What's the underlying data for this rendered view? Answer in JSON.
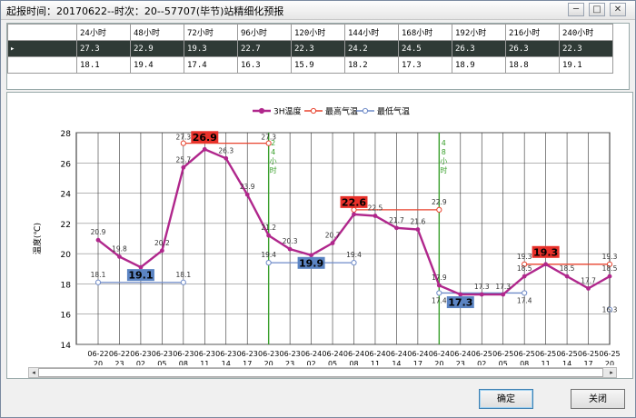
{
  "window": {
    "title": "起报时间：20170622--时次：20--57707(毕节)站精细化预报",
    "min_glyph": "─",
    "max_glyph": "□",
    "close_glyph": "✕"
  },
  "grid": {
    "headers": [
      "24小时",
      "48小时",
      "72小时",
      "96小时",
      "120小时",
      "144小时",
      "168小时",
      "192小时",
      "216小时",
      "240小时"
    ],
    "rows": [
      {
        "indicator": "▸",
        "values": [
          "27.3",
          "22.9",
          "19.3",
          "22.7",
          "22.3",
          "24.2",
          "24.5",
          "26.3",
          "26.3",
          "22.3"
        ]
      },
      {
        "indicator": "",
        "values": [
          "18.1",
          "19.4",
          "17.4",
          "16.3",
          "15.9",
          "18.2",
          "17.3",
          "18.9",
          "18.8",
          "19.1"
        ]
      }
    ]
  },
  "chart_data": {
    "type": "line",
    "ylabel": "温度(℃)",
    "ylim": [
      14,
      28
    ],
    "yticks": [
      "14",
      "16",
      "18",
      "20",
      "22",
      "24",
      "26",
      "28"
    ],
    "legend": [
      "3H温度",
      "最高气温",
      "最低气温"
    ],
    "categories": [
      [
        "06-22",
        "20"
      ],
      [
        "06-22",
        "23"
      ],
      [
        "06-23",
        "02"
      ],
      [
        "06-23",
        "05"
      ],
      [
        "06-23",
        "08"
      ],
      [
        "06-23",
        "11"
      ],
      [
        "06-23",
        "14"
      ],
      [
        "06-23",
        "17"
      ],
      [
        "06-23",
        "20"
      ],
      [
        "06-23",
        "23"
      ],
      [
        "06-24",
        "02"
      ],
      [
        "06-24",
        "05"
      ],
      [
        "06-24",
        "08"
      ],
      [
        "06-24",
        "11"
      ],
      [
        "06-24",
        "14"
      ],
      [
        "06-24",
        "17"
      ],
      [
        "06-24",
        "20"
      ],
      [
        "06-24",
        "23"
      ],
      [
        "06-25",
        "02"
      ],
      [
        "06-25",
        "05"
      ],
      [
        "06-25",
        "08"
      ],
      [
        "06-25",
        "11"
      ],
      [
        "06-25",
        "14"
      ],
      [
        "06-25",
        "17"
      ],
      [
        "06-25",
        "20"
      ]
    ],
    "temp3h": [
      20.9,
      19.8,
      19.1,
      20.2,
      25.7,
      26.9,
      26.3,
      23.9,
      21.2,
      20.3,
      19.9,
      20.7,
      22.6,
      22.5,
      21.7,
      21.6,
      17.9,
      17.3,
      17.3,
      17.3,
      18.5,
      19.3,
      18.5,
      17.7,
      18.5
    ],
    "temp3h_labels": [
      "20.9",
      "19.8",
      "",
      "20.2",
      "25.7",
      "",
      "26.3",
      "23.9",
      "21.2",
      "20.3",
      "",
      "20.7",
      "",
      "22.5",
      "21.7",
      "21.6",
      "17.9",
      "",
      "17.3",
      "17.3",
      "18.5",
      "",
      "18.5",
      "17.7",
      "18.5"
    ],
    "max_temps": [
      {
        "value": 27.3,
        "from": 4,
        "to": 8
      },
      {
        "value": 22.9,
        "from": 12,
        "to": 16
      },
      {
        "value": 19.3,
        "from": 20,
        "to": 24
      }
    ],
    "min_temps": [
      {
        "value": 18.1,
        "from": 0,
        "to": 4
      },
      {
        "value": 19.4,
        "from": 8,
        "to": 12
      },
      {
        "value": 17.4,
        "from": 16,
        "to": 20
      },
      {
        "value": 16.3,
        "from": 24,
        "to": 24
      }
    ],
    "markers": [
      {
        "at": 8,
        "text": "24小时",
        "max_label": "27.3"
      },
      {
        "at": 16,
        "text": "48小时",
        "max_label": "22.9"
      }
    ],
    "end_labels": {
      "min_first": "18.1",
      "min_first_end": "18.1",
      "min_second": "19.4",
      "min_second_end": "19.4",
      "min_third": "17.4",
      "min_third_end": "17.4",
      "max_first": "27.3",
      "max_second": "22.9",
      "max_third": "19.3",
      "max_third_end": "19.3",
      "min_fourth": "16.3"
    },
    "highlights": [
      {
        "kind": "max",
        "text": "26.9",
        "at": 5,
        "value": 26.9
      },
      {
        "kind": "min",
        "text": "19.1",
        "at": 2,
        "value": 19.1
      },
      {
        "kind": "max",
        "text": "22.6",
        "at": 12,
        "value": 22.6
      },
      {
        "kind": "min",
        "text": "19.9",
        "at": 10,
        "value": 19.9
      },
      {
        "kind": "min",
        "text": "17.3",
        "at": 17,
        "value": 17.3
      },
      {
        "kind": "max",
        "text": "19.3",
        "at": 21,
        "value": 19.3
      }
    ],
    "colors": {
      "temp": "#b0278c",
      "max": "#e8432e",
      "min": "#6f8bc8",
      "marker": "#3aa02c",
      "box_max": "#e8302a",
      "box_min": "#5b84c3"
    }
  },
  "dialog": {
    "ok": "确定",
    "close": "关闭"
  },
  "scrollbar": {
    "mode_glyph": "⊙",
    "left_glyph": "◂",
    "right_glyph": "▸"
  }
}
